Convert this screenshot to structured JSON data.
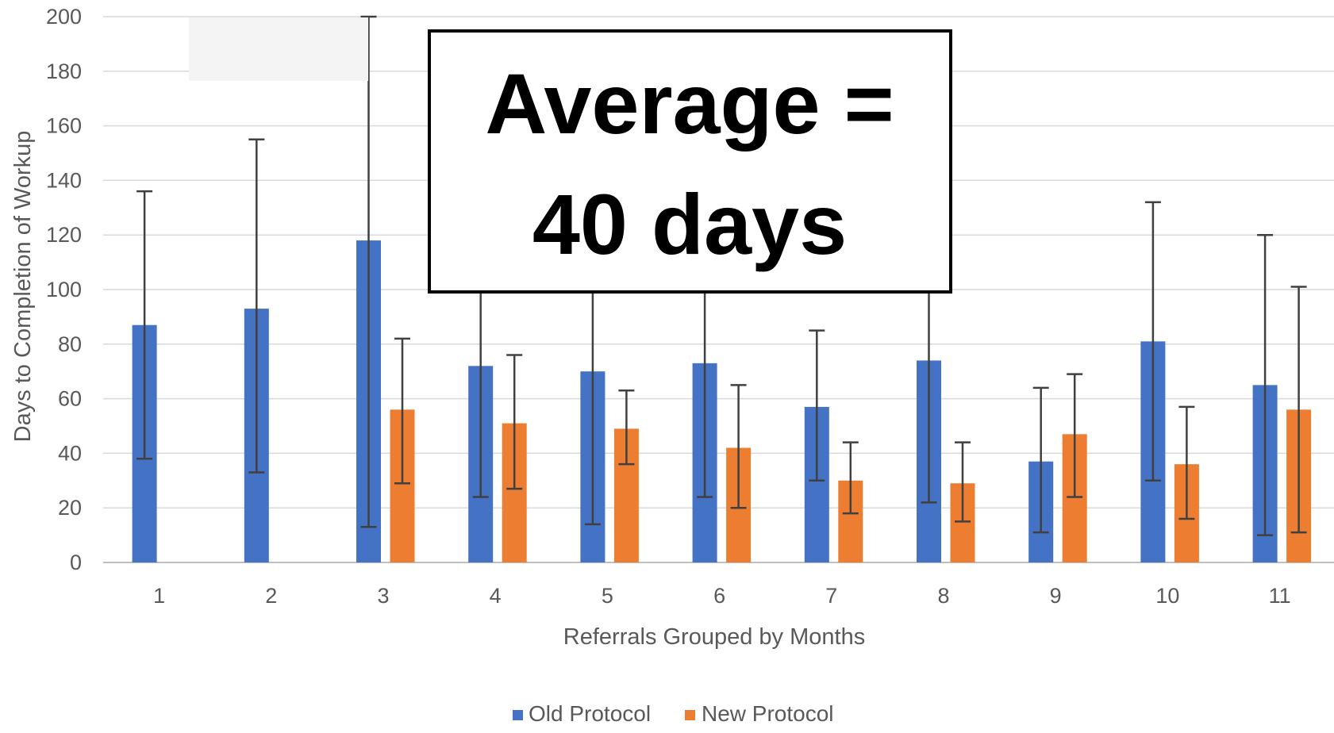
{
  "chart_data": {
    "type": "bar",
    "categories": [
      "1",
      "2",
      "3",
      "4",
      "5",
      "6",
      "7",
      "8",
      "9",
      "10",
      "11"
    ],
    "series": [
      {
        "name": "Old Protocol",
        "color": "#4472C4",
        "values": [
          87,
          93,
          118,
          72,
          70,
          73,
          57,
          74,
          37,
          81,
          65
        ],
        "error_low": [
          38,
          33,
          13,
          24,
          14,
          24,
          30,
          22,
          11,
          30,
          10
        ],
        "error_high": [
          136,
          155,
          200,
          100,
          100,
          100,
          85,
          100,
          64,
          132,
          120
        ]
      },
      {
        "name": "New Protocol",
        "color": "#ED7D31",
        "values": [
          null,
          null,
          56,
          51,
          49,
          42,
          30,
          29,
          47,
          36,
          56
        ],
        "error_low": [
          null,
          null,
          29,
          27,
          36,
          20,
          18,
          15,
          24,
          16,
          11
        ],
        "error_high": [
          null,
          null,
          82,
          76,
          63,
          65,
          44,
          44,
          69,
          57,
          101
        ]
      }
    ],
    "xlabel": "Referrals Grouped by Months",
    "ylabel": "Days to  Completion of Workup",
    "ylim": [
      0,
      200
    ],
    "yticks": [
      0,
      20,
      40,
      60,
      80,
      100,
      120,
      140,
      160,
      180,
      200
    ],
    "grid": true,
    "legend_position": "bottom",
    "annotation": {
      "line1": "Average =",
      "line2": "40 days"
    }
  }
}
